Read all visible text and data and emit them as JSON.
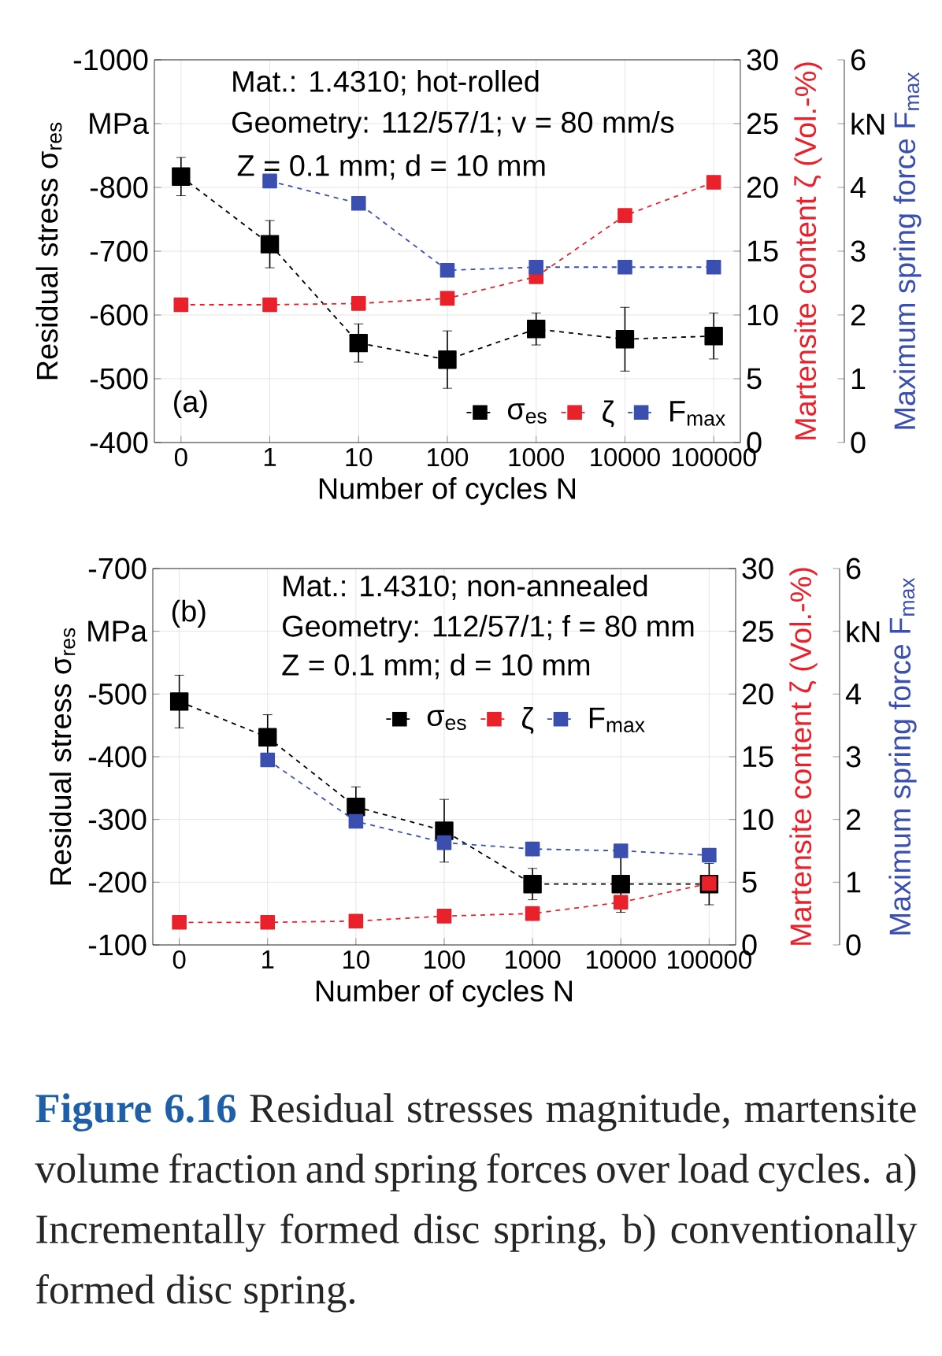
{
  "chart_data": [
    {
      "type": "line",
      "categories": [
        "0",
        "1",
        "10",
        "100",
        "1000",
        "10000",
        "100000"
      ],
      "xlabel": "Number of cycles N",
      "ylabel": "Residual stress σ$_{res}$",
      "y2label": "Martensite content ζ (Vol.-%)",
      "y3label": "Maximum spring force F$_{max}$",
      "ylim": [
        -400,
        -1000
      ],
      "yticks": [
        -400,
        -500,
        -600,
        -700,
        -800,
        {
          "value": -900,
          "label": "MPa"
        },
        -1000
      ],
      "y2lim": [
        0,
        30
      ],
      "y2ticks": [
        0,
        5,
        10,
        15,
        20,
        25,
        30
      ],
      "y3lim": [
        0,
        6
      ],
      "y3ticks": [
        0,
        1,
        2,
        3,
        4,
        {
          "value": 5,
          "label": "kN"
        },
        6
      ],
      "series": [
        {
          "name": "σ$_{es}$",
          "color": "#000000",
          "values": [
            -817,
            -711,
            -556,
            -530,
            -578,
            -562,
            -567
          ],
          "errors": [
            30,
            37,
            30,
            45,
            25,
            50,
            36
          ]
        },
        {
          "name": "ζ",
          "color": "#e8212a",
          "axis": "y2",
          "values": [
            10.8,
            10.8,
            10.9,
            11.3,
            13.0,
            17.8,
            20.4
          ]
        },
        {
          "name": "F$_{max}$",
          "color": "#3a4fb0",
          "axis": "y3",
          "values": [
            null,
            4.1,
            3.75,
            2.7,
            2.75,
            2.75,
            2.75
          ]
        }
      ],
      "annotations": [
        "Mat.: 1.4310; hot-rolled",
        "Geometry: 112/57/1; v = 80 mm/s",
        "Z = 0.1 mm; d = 10 mm",
        "(a)"
      ],
      "grid": true,
      "legend": "bottom right",
      "marker": "square",
      "line_style": "dashed"
    },
    {
      "type": "line",
      "categories": [
        "0",
        "1",
        "10",
        "100",
        "1000",
        "10000",
        "100000"
      ],
      "xlabel": "Number of cycles N",
      "ylabel": "Residual stress σ$_{res}$",
      "y2label": "Martensite content ζ (Vol.-%)",
      "y3label": "Maximum spring force F$_{max}$",
      "ylim": [
        -100,
        -700
      ],
      "yticks": [
        -100,
        -200,
        -300,
        -400,
        -500,
        {
          "value": -600,
          "label": "MPa"
        },
        -700
      ],
      "y2lim": [
        0,
        30
      ],
      "y2ticks": [
        0,
        5,
        10,
        15,
        20,
        25,
        30
      ],
      "y3lim": [
        0,
        6
      ],
      "y3ticks": [
        0,
        1,
        2,
        3,
        4,
        {
          "value": 5,
          "label": "kN"
        },
        6
      ],
      "series": [
        {
          "name": "σ$_{es}$",
          "color": "#000000",
          "values": [
            -488,
            -431,
            -320,
            -282,
            -197,
            -197,
            -197
          ],
          "errors": [
            42,
            36,
            32,
            50,
            25,
            45,
            33
          ]
        },
        {
          "name": "ζ",
          "color": "#e8212a",
          "axis": "y2",
          "values": [
            1.8,
            1.8,
            1.9,
            2.3,
            2.5,
            3.4,
            4.9
          ]
        },
        {
          "name": "F$_{max}$",
          "color": "#3a4fb0",
          "axis": "y3",
          "values": [
            null,
            2.95,
            1.97,
            1.63,
            1.53,
            1.5,
            1.43
          ]
        }
      ],
      "annotations": [
        "Mat.: 1.4310; non-annealed",
        "Geometry: 112/57/1; f = 80 mm",
        "Z = 0.1 mm; d = 10 mm",
        "(b)",
        "**Figure 6.16** Residual stresses magnitude, martensite volume fraction and spring forces over load cycles. a) Incrementally formed disc spring, b) conventionally formed disc spring."
      ],
      "grid": true,
      "legend": "right",
      "marker": "square",
      "line_style": "dashed"
    }
  ]
}
